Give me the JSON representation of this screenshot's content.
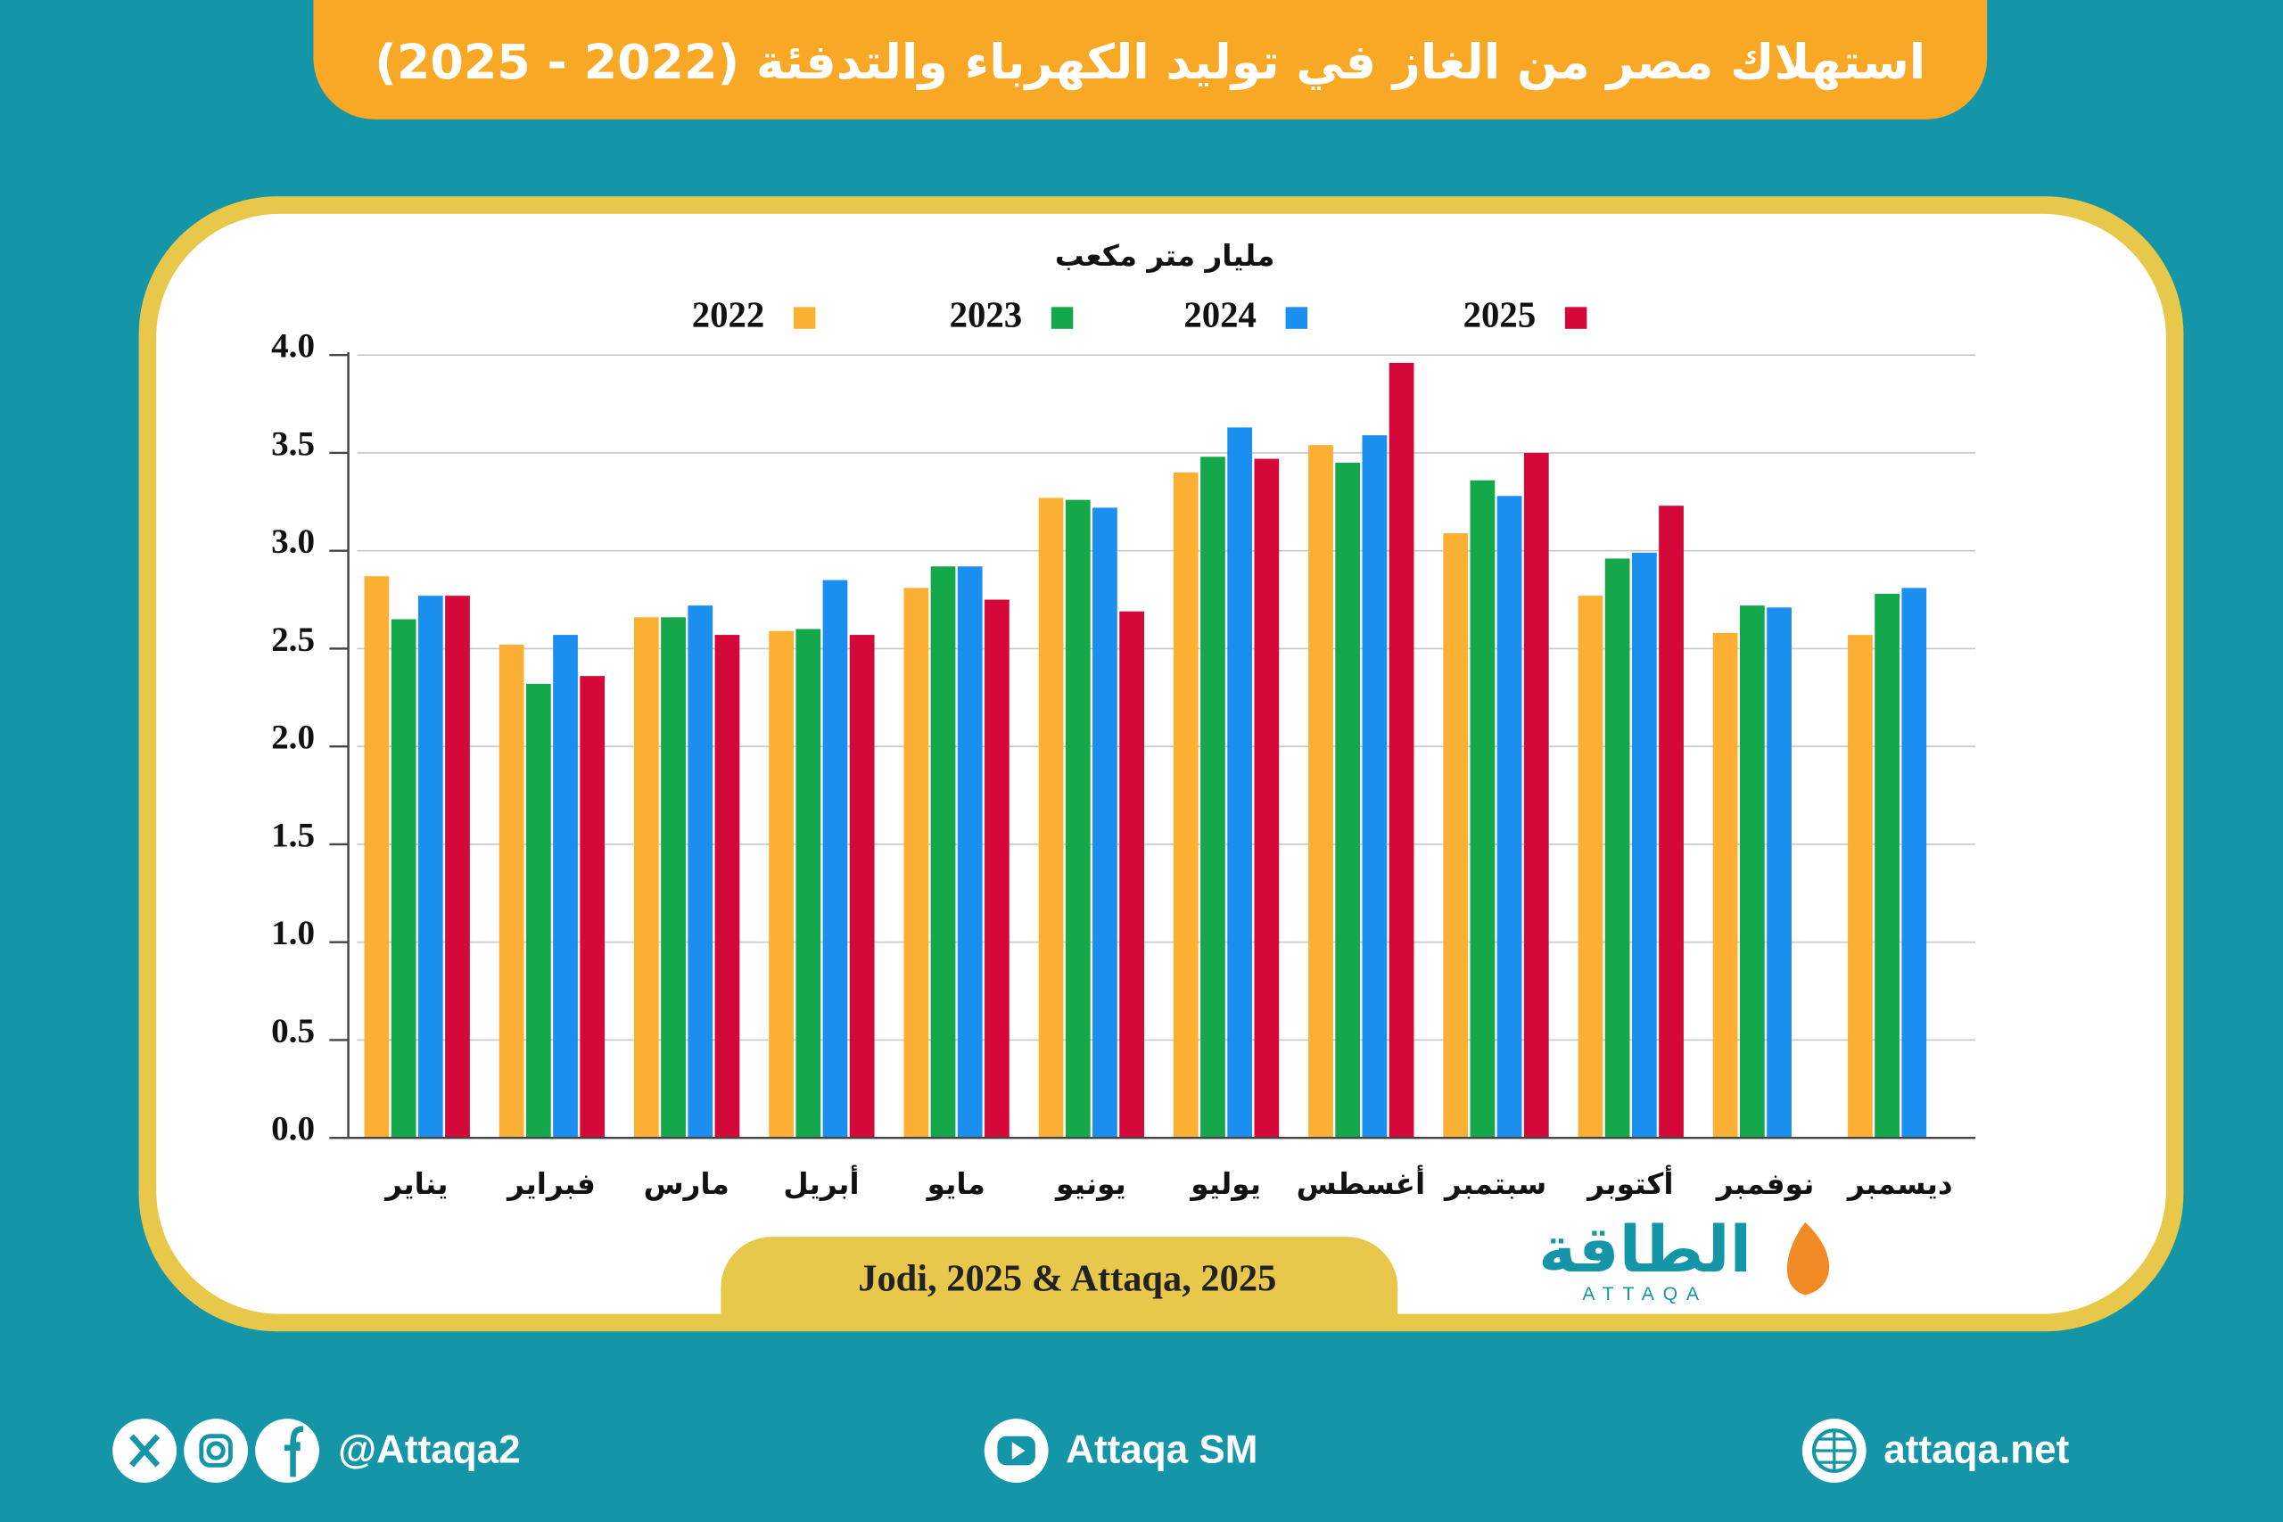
{
  "chart_data": {
    "type": "bar",
    "title": "استهلاك مصر من الغاز في توليد الكهرباء والتدفئة (2022 - 2025)",
    "y_label": "مليار متر مكعب",
    "categories": [
      "يناير",
      "فبراير",
      "مارس",
      "أبريل",
      "مايو",
      "يونيو",
      "يوليو",
      "أغسطس",
      "سبتمبر",
      "أكتوبر",
      "نوفمبر",
      "ديسمبر"
    ],
    "series": [
      {
        "name": "2022",
        "color": "#fbb034",
        "values": [
          2.87,
          2.52,
          2.66,
          2.59,
          2.81,
          3.27,
          3.4,
          3.54,
          3.09,
          2.77,
          2.58,
          2.57
        ]
      },
      {
        "name": "2023",
        "color": "#15a84a",
        "values": [
          2.65,
          2.32,
          2.66,
          2.6,
          2.92,
          3.26,
          3.48,
          3.45,
          3.36,
          2.96,
          2.72,
          2.78
        ]
      },
      {
        "name": "2024",
        "color": "#1b8ff0",
        "values": [
          2.77,
          2.57,
          2.72,
          2.85,
          2.92,
          3.22,
          3.63,
          3.59,
          3.28,
          2.99,
          2.71,
          2.81
        ]
      },
      {
        "name": "2025",
        "color": "#d4093a",
        "values": [
          2.77,
          2.36,
          2.57,
          2.57,
          2.75,
          2.69,
          3.47,
          3.96,
          3.5,
          3.23,
          null,
          null
        ]
      }
    ],
    "ylim": [
      0,
      4
    ],
    "yticks": [
      {
        "value": 0,
        "label": "0.0"
      },
      0.5,
      {
        "value": 1,
        "label": "1.0"
      },
      1.5,
      {
        "value": 2,
        "label": "2.0"
      },
      2.5,
      {
        "value": 3,
        "label": "3.0"
      },
      3.5,
      {
        "value": 4,
        "label": "4.0"
      }
    ],
    "grid": true,
    "source": "Jodi, 2025 & Attaqa, 2025"
  },
  "logo": {
    "name": "الطاقة",
    "latin": "ATTAQA"
  },
  "footer": {
    "social": "@Attaqa2",
    "youtube": "Attaqa SM",
    "website": "attaqa.net"
  }
}
